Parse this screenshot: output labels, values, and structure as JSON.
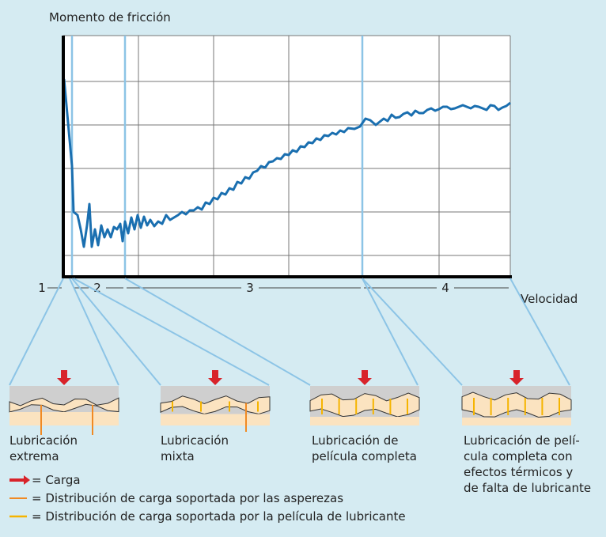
{
  "axis": {
    "y_label": "Momento de fricción",
    "x_label": "Velocidad"
  },
  "regions": [
    "1",
    "2",
    "3",
    "4"
  ],
  "panels": [
    {
      "caption": [
        "Lubricación",
        "extrema"
      ]
    },
    {
      "caption": [
        "Lubricación",
        "mixta"
      ]
    },
    {
      "caption": [
        "Lubricación de",
        "película completa"
      ]
    },
    {
      "caption": [
        "Lubricación de pelí-",
        "cula completa con",
        "efectos térmicos y",
        "de falta de lubricante"
      ]
    }
  ],
  "legend": [
    {
      "label": "= Carga"
    },
    {
      "label": "= Distribución de carga soportada por las asperezas"
    },
    {
      "label": "= Distribución de carga soportada por la película de lubricante"
    }
  ]
}
